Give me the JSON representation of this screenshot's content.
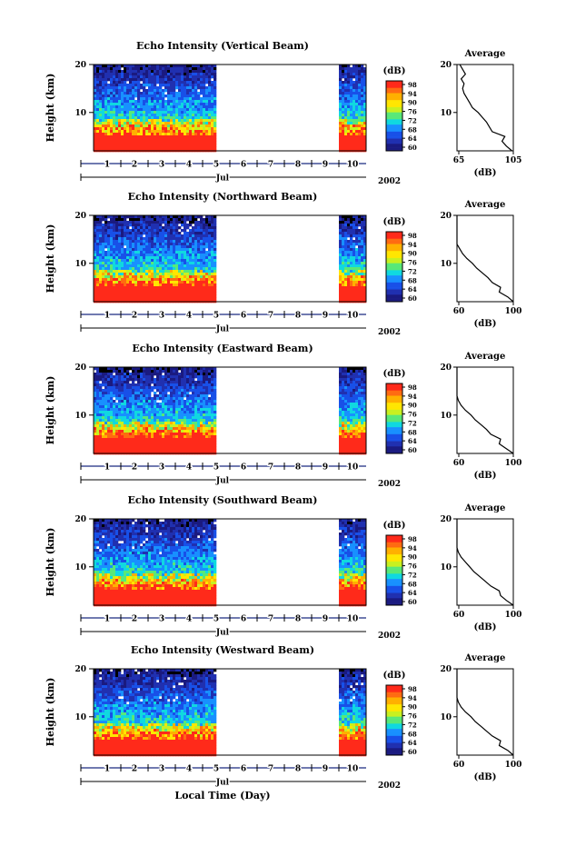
{
  "figure": {
    "xlabel": "Local Time (Day)",
    "month_label": "Jul",
    "year_label": "2002",
    "day_labels": [
      "1",
      "2",
      "3",
      "4",
      "5",
      "6",
      "7",
      "8",
      "9",
      "10"
    ],
    "height_label": "Height (km)",
    "height_ticks": [
      "20",
      "10"
    ],
    "colorbar_unit": "(dB)",
    "colorbar_ticks": [
      "98",
      "94",
      "90",
      "76",
      "72",
      "68",
      "64",
      "60"
    ],
    "colorbar_colors": [
      "#ff2a1a",
      "#ff6a10",
      "#ffb000",
      "#ffe600",
      "#c8f020",
      "#58e878",
      "#10d8e0",
      "#1890ff",
      "#1850e8",
      "#2030b0",
      "#1a1a80"
    ],
    "avg_title": "Average",
    "avg_xlabel": "(dB)"
  },
  "panels": [
    {
      "title": "Echo Intensity (Vertical Beam)",
      "avg_ticks": [
        "65",
        "105"
      ]
    },
    {
      "title": "Echo Intensity (Northward Beam)",
      "avg_ticks": [
        "60",
        "100"
      ]
    },
    {
      "title": "Echo Intensity (Eastward Beam)",
      "avg_ticks": [
        "60",
        "100"
      ]
    },
    {
      "title": "Echo Intensity (Southward Beam)",
      "avg_ticks": [
        "60",
        "100"
      ]
    },
    {
      "title": "Echo Intensity (Westward Beam)",
      "avg_ticks": [
        "60",
        "100"
      ]
    }
  ],
  "chart_data": {
    "type": "heatmap",
    "xlim_days": [
      0.5,
      10.5
    ],
    "data_coverage_days": [
      [
        0.5,
        5.0
      ],
      [
        9.5,
        10.5
      ]
    ],
    "ylim_km": [
      2,
      20
    ],
    "colorbar_range_db": [
      60,
      98
    ],
    "average_profiles": [
      {
        "beam": "Vertical",
        "xlim": [
          65,
          105
        ],
        "height_km": [
          2,
          3,
          4,
          5,
          6,
          7,
          8,
          9,
          10,
          11,
          12,
          13,
          14,
          15,
          16,
          17,
          18,
          19,
          20
        ],
        "db": [
          104,
          100,
          97,
          99,
          90,
          88,
          86,
          83,
          80,
          76,
          74,
          72,
          70,
          69,
          70,
          68,
          71,
          69,
          67
        ]
      },
      {
        "beam": "Northward",
        "xlim": [
          60,
          100
        ],
        "height_km": [
          2,
          3,
          4,
          5,
          6,
          7,
          8,
          9,
          10,
          11,
          12,
          13,
          14,
          15,
          16,
          17,
          18,
          19,
          20
        ],
        "db": [
          100,
          96,
          90,
          91,
          85,
          82,
          78,
          74,
          71,
          67,
          64,
          62,
          60,
          58,
          60,
          57,
          59,
          57,
          56
        ]
      },
      {
        "beam": "Eastward",
        "xlim": [
          60,
          100
        ],
        "height_km": [
          2,
          3,
          4,
          5,
          6,
          7,
          8,
          9,
          10,
          11,
          12,
          13,
          14,
          15,
          16,
          17,
          18,
          19,
          20
        ],
        "db": [
          100,
          95,
          90,
          91,
          84,
          81,
          77,
          73,
          70,
          66,
          63,
          61,
          59,
          58,
          60,
          56,
          58,
          56,
          55
        ]
      },
      {
        "beam": "Southward",
        "xlim": [
          60,
          100
        ],
        "height_km": [
          2,
          3,
          4,
          5,
          6,
          7,
          8,
          9,
          10,
          11,
          12,
          13,
          14,
          15,
          16,
          17,
          18,
          19,
          20
        ],
        "db": [
          100,
          95,
          91,
          90,
          84,
          80,
          76,
          72,
          69,
          66,
          63,
          61,
          59,
          57,
          59,
          56,
          58,
          56,
          55
        ]
      },
      {
        "beam": "Westward",
        "xlim": [
          60,
          100
        ],
        "height_km": [
          2,
          3,
          4,
          5,
          6,
          7,
          8,
          9,
          10,
          11,
          12,
          13,
          14,
          15,
          16,
          17,
          18,
          19,
          20
        ],
        "db": [
          100,
          96,
          90,
          91,
          85,
          81,
          77,
          73,
          70,
          66,
          63,
          61,
          59,
          58,
          60,
          56,
          58,
          56,
          55
        ]
      }
    ]
  }
}
